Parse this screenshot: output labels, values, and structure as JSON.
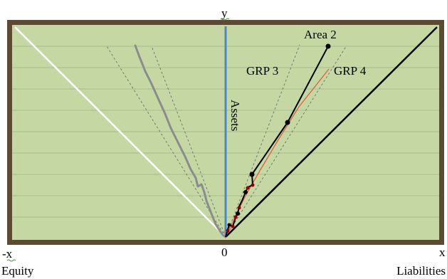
{
  "labels": {
    "y_axis": "y",
    "neg_x_axis": "-x",
    "origin": "0",
    "pos_x_axis": "x",
    "equity": "Equity",
    "liabilities": "Liabilities",
    "assets": "Assets",
    "area2": "Area 2",
    "grp3": "GRP 3",
    "grp4": "GRP 4"
  },
  "colors": {
    "frame_border": "#5c4a33",
    "plot_background": "#c5d8a4",
    "gridline": "#a8bd8e",
    "assets_axis": "#4a86c8",
    "equity_line": "#ffffff",
    "liabilities_line": "#000000",
    "gray_path": "#8c8c8c",
    "dashed_guide": "#6e6e6e",
    "area2_path": "#000000",
    "grp4_path": "#e06040",
    "red_points": "#8b0000"
  },
  "icons": {
    "y_axis_mark": "spellcheck-squiggle",
    "neg_x_mark": "spellcheck-squiggle"
  }
}
